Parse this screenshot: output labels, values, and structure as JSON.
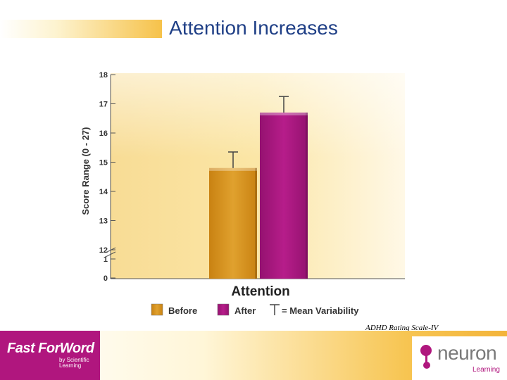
{
  "title": "Attention Increases",
  "caption": "ADHD Rating Scale-IV",
  "footer": {
    "left_logo": {
      "main": "Fast ForWord",
      "sub": "by Scientific Learning"
    },
    "right_logo": {
      "main": "neuron",
      "sub": "Learning"
    }
  },
  "colors": {
    "before": "#d9921c",
    "after": "#a8167e",
    "plot_bg": "#fbe6a6",
    "title": "#1f3f86"
  },
  "chart_data": {
    "type": "bar",
    "xlabel": "Attention",
    "ylabel": "Score Range (0 - 27)",
    "yticks": [
      "18",
      "17",
      "16",
      "15",
      "14",
      "13",
      "12",
      "1",
      "0"
    ],
    "ylim": [
      12,
      18
    ],
    "axis_break": true,
    "categories": [
      "Attention"
    ],
    "series": [
      {
        "name": "Before",
        "values": [
          14.8
        ],
        "error": [
          0.55
        ],
        "color": "#d9921c"
      },
      {
        "name": "After",
        "values": [
          16.7
        ],
        "error": [
          0.55
        ],
        "color": "#a8167e"
      }
    ],
    "legend_note": "= Mean Variability",
    "legend_position": "bottom"
  }
}
